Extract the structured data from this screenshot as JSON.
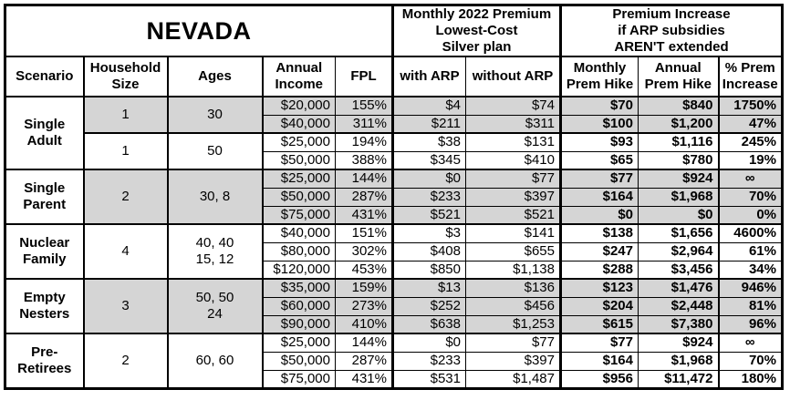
{
  "title": "NEVADA",
  "sections": {
    "premium_header_lines": [
      "Monthly 2022 Premium",
      "Lowest-Cost",
      "Silver plan"
    ],
    "increase_header_lines": [
      "Premium Increase",
      "if ARP subsidies",
      "AREN'T extended"
    ]
  },
  "columns": {
    "scenario": "Scenario",
    "household_lines": [
      "Household",
      "Size"
    ],
    "ages": "Ages",
    "income_lines": [
      "Annual",
      "Income"
    ],
    "fpl": "FPL",
    "with_arp": "with ARP",
    "without_arp": "without ARP",
    "monthly_hike_lines": [
      "Monthly",
      "Prem Hike"
    ],
    "annual_hike_lines": [
      "Annual",
      "Prem Hike"
    ],
    "pct_increase_lines": [
      "% Prem",
      "Increase"
    ]
  },
  "colors": {
    "shaded_row": "#d5d5d5",
    "border": "#000000",
    "background": "#ffffff"
  },
  "groups": [
    {
      "scenario_lines": [
        "Single",
        "Adult"
      ],
      "subgroups": [
        {
          "household": "1",
          "ages_lines": [
            "30"
          ],
          "shaded": true,
          "rows": [
            {
              "income": "$20,000",
              "fpl": "155%",
              "with_arp": "$4",
              "without_arp": "$74",
              "monthly_hike": "$70",
              "annual_hike": "$840",
              "pct_increase": "1750%"
            },
            {
              "income": "$40,000",
              "fpl": "311%",
              "with_arp": "$211",
              "without_arp": "$311",
              "monthly_hike": "$100",
              "annual_hike": "$1,200",
              "pct_increase": "47%"
            }
          ]
        },
        {
          "household": "1",
          "ages_lines": [
            "50"
          ],
          "shaded": false,
          "rows": [
            {
              "income": "$25,000",
              "fpl": "194%",
              "with_arp": "$38",
              "without_arp": "$131",
              "monthly_hike": "$93",
              "annual_hike": "$1,116",
              "pct_increase": "245%"
            },
            {
              "income": "$50,000",
              "fpl": "388%",
              "with_arp": "$345",
              "without_arp": "$410",
              "monthly_hike": "$65",
              "annual_hike": "$780",
              "pct_increase": "19%"
            }
          ]
        }
      ]
    },
    {
      "scenario_lines": [
        "Single",
        "Parent"
      ],
      "subgroups": [
        {
          "household": "2",
          "ages_lines": [
            "30, 8"
          ],
          "shaded": true,
          "rows": [
            {
              "income": "$25,000",
              "fpl": "144%",
              "with_arp": "$0",
              "without_arp": "$77",
              "monthly_hike": "$77",
              "annual_hike": "$924",
              "pct_increase": "∞",
              "pct_center": true
            },
            {
              "income": "$50,000",
              "fpl": "287%",
              "with_arp": "$233",
              "without_arp": "$397",
              "monthly_hike": "$164",
              "annual_hike": "$1,968",
              "pct_increase": "70%"
            },
            {
              "income": "$75,000",
              "fpl": "431%",
              "with_arp": "$521",
              "without_arp": "$521",
              "monthly_hike": "$0",
              "annual_hike": "$0",
              "pct_increase": "0%"
            }
          ]
        }
      ]
    },
    {
      "scenario_lines": [
        "Nuclear",
        "Family"
      ],
      "subgroups": [
        {
          "household": "4",
          "ages_lines": [
            "40, 40",
            "15, 12"
          ],
          "shaded": false,
          "rows": [
            {
              "income": "$40,000",
              "fpl": "151%",
              "with_arp": "$3",
              "without_arp": "$141",
              "monthly_hike": "$138",
              "annual_hike": "$1,656",
              "pct_increase": "4600%"
            },
            {
              "income": "$80,000",
              "fpl": "302%",
              "with_arp": "$408",
              "without_arp": "$655",
              "monthly_hike": "$247",
              "annual_hike": "$2,964",
              "pct_increase": "61%"
            },
            {
              "income": "$120,000",
              "fpl": "453%",
              "with_arp": "$850",
              "without_arp": "$1,138",
              "monthly_hike": "$288",
              "annual_hike": "$3,456",
              "pct_increase": "34%"
            }
          ]
        }
      ]
    },
    {
      "scenario_lines": [
        "Empty",
        "Nesters"
      ],
      "subgroups": [
        {
          "household": "3",
          "ages_lines": [
            "50, 50",
            "24"
          ],
          "shaded": true,
          "rows": [
            {
              "income": "$35,000",
              "fpl": "159%",
              "with_arp": "$13",
              "without_arp": "$136",
              "monthly_hike": "$123",
              "annual_hike": "$1,476",
              "pct_increase": "946%"
            },
            {
              "income": "$60,000",
              "fpl": "273%",
              "with_arp": "$252",
              "without_arp": "$456",
              "monthly_hike": "$204",
              "annual_hike": "$2,448",
              "pct_increase": "81%"
            },
            {
              "income": "$90,000",
              "fpl": "410%",
              "with_arp": "$638",
              "without_arp": "$1,253",
              "monthly_hike": "$615",
              "annual_hike": "$7,380",
              "pct_increase": "96%"
            }
          ]
        }
      ]
    },
    {
      "scenario_lines": [
        "Pre-",
        "Retirees"
      ],
      "subgroups": [
        {
          "household": "2",
          "ages_lines": [
            "60, 60"
          ],
          "shaded": false,
          "rows": [
            {
              "income": "$25,000",
              "fpl": "144%",
              "with_arp": "$0",
              "without_arp": "$77",
              "monthly_hike": "$77",
              "annual_hike": "$924",
              "pct_increase": "∞",
              "pct_center": true
            },
            {
              "income": "$50,000",
              "fpl": "287%",
              "with_arp": "$233",
              "without_arp": "$397",
              "monthly_hike": "$164",
              "annual_hike": "$1,968",
              "pct_increase": "70%"
            },
            {
              "income": "$75,000",
              "fpl": "431%",
              "with_arp": "$531",
              "without_arp": "$1,487",
              "monthly_hike": "$956",
              "annual_hike": "$11,472",
              "pct_increase": "180%"
            }
          ]
        }
      ]
    }
  ]
}
